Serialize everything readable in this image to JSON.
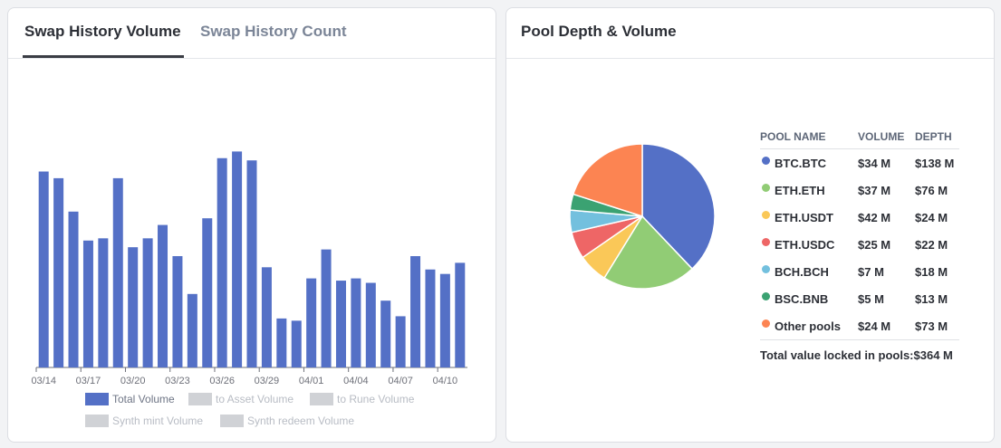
{
  "left_card": {
    "tabs": [
      {
        "label": "Swap History Volume",
        "active": true
      },
      {
        "label": "Swap History Count",
        "active": false
      }
    ],
    "chart_data": {
      "type": "bar",
      "categories": [
        "03/14",
        "03/15",
        "03/16",
        "03/17",
        "03/18",
        "03/19",
        "03/20",
        "03/21",
        "03/22",
        "03/23",
        "03/24",
        "03/25",
        "03/26",
        "03/27",
        "03/28",
        "03/29",
        "03/30",
        "03/31",
        "04/01",
        "04/02",
        "04/03",
        "04/04",
        "04/05",
        "04/06",
        "04/07",
        "04/08",
        "04/09",
        "04/10",
        "04/11"
      ],
      "x_tick_labels": [
        "03/14",
        "03/17",
        "03/20",
        "03/23",
        "03/26",
        "03/29",
        "04/01",
        "04/04",
        "04/07",
        "04/10"
      ],
      "x_tick_every": 3,
      "series": [
        {
          "name": "Total Volume",
          "color": "#5470c6",
          "values": [
            88,
            85,
            70,
            57,
            58,
            85,
            54,
            58,
            64,
            50,
            33,
            67,
            94,
            97,
            93,
            45,
            22,
            21,
            40,
            53,
            39,
            40,
            38,
            30,
            23,
            50,
            44,
            42,
            47
          ]
        }
      ],
      "ylim": [
        0,
        100
      ],
      "grid": false
    },
    "legend": [
      {
        "label": "Total Volume",
        "active": true
      },
      {
        "label": "to Asset Volume",
        "active": false
      },
      {
        "label": "to Rune Volume",
        "active": false
      },
      {
        "label": "Synth mint Volume",
        "active": false
      },
      {
        "label": "Synth redeem Volume",
        "active": false
      }
    ]
  },
  "right_card": {
    "title": "Pool Depth & Volume",
    "table": {
      "headers": {
        "name": "POOL NAME",
        "volume": "VOLUME",
        "depth": "DEPTH"
      },
      "rows": [
        {
          "name": "BTC.BTC",
          "volume": "$34 M",
          "depth": "$138 M",
          "color": "#5470c6"
        },
        {
          "name": "ETH.ETH",
          "volume": "$37 M",
          "depth": "$76 M",
          "color": "#91cc75"
        },
        {
          "name": "ETH.USDT",
          "volume": "$42 M",
          "depth": "$24 M",
          "color": "#fac858"
        },
        {
          "name": "ETH.USDC",
          "volume": "$25 M",
          "depth": "$22 M",
          "color": "#ee6666"
        },
        {
          "name": "BCH.BCH",
          "volume": "$7 M",
          "depth": "$18 M",
          "color": "#73c0de"
        },
        {
          "name": "BSC.BNB",
          "volume": "$5 M",
          "depth": "$13 M",
          "color": "#3ba272"
        },
        {
          "name": "Other pools",
          "volume": "$24 M",
          "depth": "$73 M",
          "color": "#fc8452"
        }
      ],
      "total_text": "Total value locked in pools:$364 M"
    },
    "chart_data": {
      "type": "pie",
      "categories": [
        "BTC.BTC",
        "ETH.ETH",
        "ETH.USDT",
        "ETH.USDC",
        "BCH.BCH",
        "BSC.BNB",
        "Other pools"
      ],
      "values": [
        138,
        76,
        24,
        22,
        18,
        13,
        73
      ],
      "secondary_values": [
        34,
        37,
        42,
        25,
        7,
        5,
        24
      ],
      "colors": [
        "#5470c6",
        "#91cc75",
        "#fac858",
        "#ee6666",
        "#73c0de",
        "#3ba272",
        "#fc8452"
      ]
    }
  }
}
